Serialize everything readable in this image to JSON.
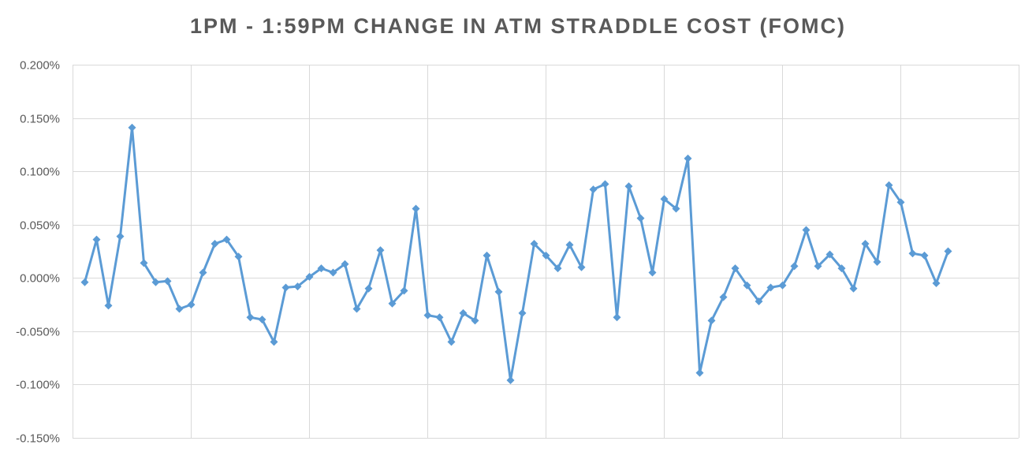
{
  "chart_data": {
    "type": "line",
    "title": "1PM - 1:59PM CHANGE IN ATM STRADDLE COST (FOMC)",
    "xlabel": "",
    "ylabel": "",
    "ylim": [
      -0.0015,
      0.002
    ],
    "y_ticks": [
      0.002,
      0.0015,
      0.001,
      0.0005,
      0.0,
      -0.0005,
      -0.001,
      -0.0015
    ],
    "y_tick_labels": [
      "0.200%",
      "0.150%",
      "0.100%",
      "0.050%",
      "0.000%",
      "-0.050%",
      "-0.100%",
      "-0.150%"
    ],
    "x_gridline_count": 8,
    "grid": true,
    "line_color": "#5b9bd5",
    "series": [
      {
        "values": [
          -4e-05,
          0.00036,
          -0.00026,
          0.00039,
          0.00141,
          0.00014,
          -4e-05,
          -3e-05,
          -0.00029,
          -0.00025,
          5e-05,
          0.00032,
          0.00036,
          0.0002,
          -0.00037,
          -0.00039,
          -0.0006,
          -9e-05,
          -8e-05,
          1e-05,
          9e-05,
          5e-05,
          0.00013,
          -0.00029,
          -0.0001,
          0.00026,
          -0.00024,
          -0.00012,
          0.00065,
          -0.00035,
          -0.00037,
          -0.0006,
          -0.00033,
          -0.0004,
          0.00021,
          -0.00013,
          -0.00096,
          -0.00033,
          0.00032,
          0.00021,
          9e-05,
          0.00031,
          0.0001,
          0.00083,
          0.00088,
          -0.00037,
          0.00086,
          0.00056,
          5e-05,
          0.00074,
          0.00065,
          0.00112,
          -0.00089,
          -0.0004,
          -0.00018,
          9e-05,
          -7e-05,
          -0.00022,
          -9e-05,
          -7e-05,
          0.00011,
          0.00045,
          0.00011,
          0.00022,
          9e-05,
          -0.0001,
          0.00032,
          0.00015,
          0.00087,
          0.00071,
          0.00023,
          0.00021,
          -5e-05,
          0.00025
        ]
      }
    ]
  }
}
